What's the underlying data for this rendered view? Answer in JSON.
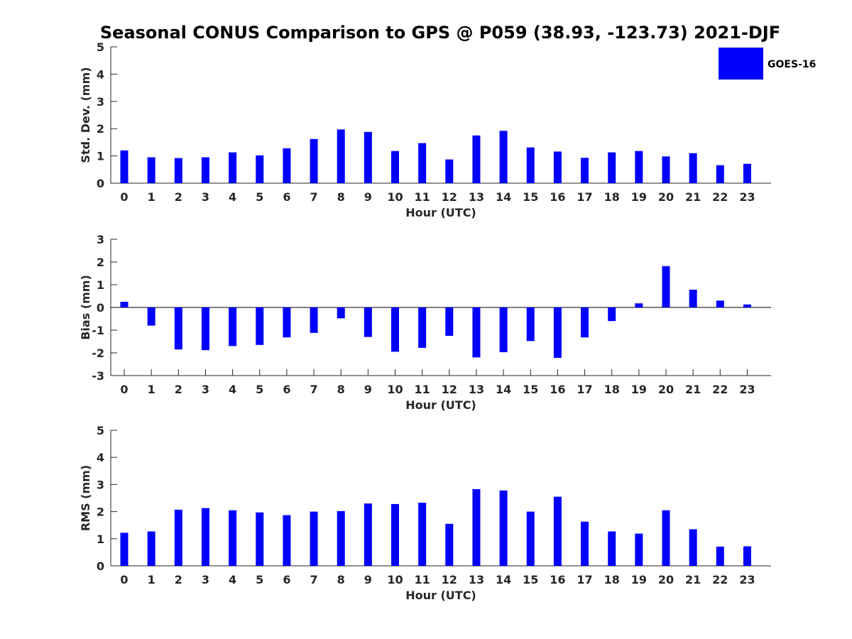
{
  "chart_data": {
    "title": "Seasonal CONUS Comparison to GPS @ P059 (38.93, -123.73) 2021-DJF",
    "legend": {
      "label": "GOES-16",
      "color": "#0000ff",
      "placement": "top-right"
    },
    "panels": [
      {
        "type": "bar",
        "xlabel": "Hour (UTC)",
        "ylabel": "Std. Dev. (mm)",
        "ylim": [
          0,
          5
        ],
        "yticks": [
          0,
          1,
          2,
          3,
          4,
          5
        ],
        "categories": [
          "0",
          "1",
          "2",
          "3",
          "4",
          "5",
          "6",
          "7",
          "8",
          "9",
          "10",
          "11",
          "12",
          "13",
          "14",
          "15",
          "16",
          "17",
          "18",
          "19",
          "20",
          "21",
          "22",
          "23"
        ],
        "series": [
          {
            "name": "GOES-16",
            "values": [
              1.2,
              0.95,
              0.92,
              0.95,
              1.13,
              1.02,
              1.28,
              1.62,
              1.97,
              1.88,
              1.18,
              1.47,
              0.87,
              1.75,
              1.92,
              1.31,
              1.16,
              0.93,
              1.13,
              1.18,
              0.98,
              1.1,
              0.66,
              0.71
            ]
          }
        ]
      },
      {
        "type": "bar",
        "xlabel": "Hour (UTC)",
        "ylabel": "Bias (mm)",
        "ylim": [
          -3,
          3
        ],
        "yticks": [
          -3,
          -2,
          -1,
          0,
          1,
          2,
          3
        ],
        "categories": [
          "0",
          "1",
          "2",
          "3",
          "4",
          "5",
          "6",
          "7",
          "8",
          "9",
          "10",
          "11",
          "12",
          "13",
          "14",
          "15",
          "16",
          "17",
          "18",
          "19",
          "20",
          "21",
          "22",
          "23"
        ],
        "series": [
          {
            "name": "GOES-16",
            "values": [
              0.25,
              -0.8,
              -1.85,
              -1.88,
              -1.7,
              -1.65,
              -1.32,
              -1.12,
              -0.48,
              -1.3,
              -1.95,
              -1.78,
              -1.25,
              -2.2,
              -1.97,
              -1.48,
              -2.22,
              -1.32,
              -0.6,
              0.18,
              1.82,
              0.78,
              0.3,
              0.13
            ]
          }
        ]
      },
      {
        "type": "bar",
        "xlabel": "Hour (UTC)",
        "ylabel": "RMS (mm)",
        "ylim": [
          0,
          5
        ],
        "yticks": [
          0,
          1,
          2,
          3,
          4,
          5
        ],
        "categories": [
          "0",
          "1",
          "2",
          "3",
          "4",
          "5",
          "6",
          "7",
          "8",
          "9",
          "10",
          "11",
          "12",
          "13",
          "14",
          "15",
          "16",
          "17",
          "18",
          "19",
          "20",
          "21",
          "22",
          "23"
        ],
        "series": [
          {
            "name": "GOES-16",
            "values": [
              1.22,
              1.27,
              2.07,
              2.13,
              2.05,
              1.97,
              1.87,
              2.0,
              2.02,
              2.3,
              2.28,
              2.33,
              1.55,
              2.83,
              2.78,
              2.0,
              2.55,
              1.63,
              1.27,
              1.19,
              2.05,
              1.35,
              0.71,
              0.72
            ]
          }
        ]
      }
    ]
  }
}
